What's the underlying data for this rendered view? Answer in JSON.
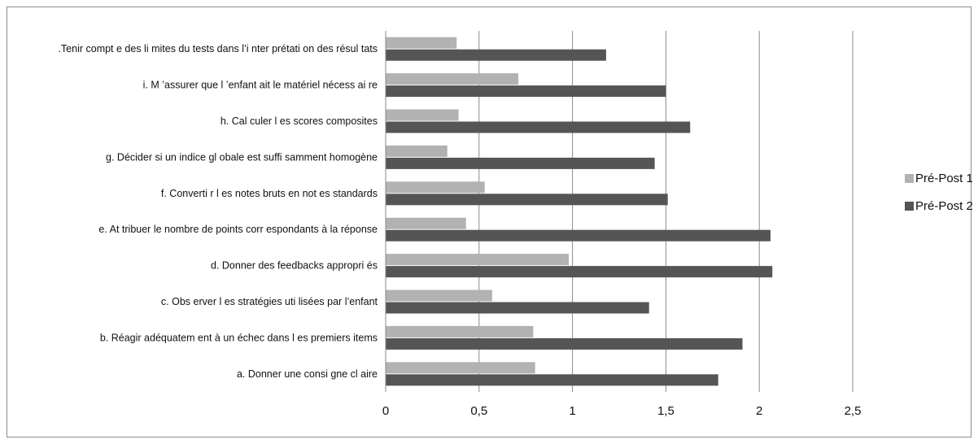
{
  "chart_data": {
    "type": "bar",
    "orientation": "horizontal",
    "title": "",
    "xlabel": "",
    "ylabel": "",
    "xlim": [
      0,
      2.5
    ],
    "xticks": [
      "0",
      "0,5",
      "1",
      "1,5",
      "2",
      "2,5"
    ],
    "xtick_values": [
      0,
      0.5,
      1,
      1.5,
      2,
      2.5
    ],
    "grid": "vertical",
    "legend_position": "right",
    "categories": [
      ".Tenir compt e des li mites du tests dans l’i nter prétati on des résul tats",
      "i. M ’assurer que l ’enfant ait le matériel nécess ai re",
      "h. Cal culer l es scores composites",
      "g. Décider si un indice gl obale est suffi samment homogène",
      "f. Converti r l es notes bruts en not es standards",
      "e. At tribuer le nombre de points corr espondants à la réponse",
      "d. Donner des feedbacks appropri és",
      "c. Obs erver l es stratégies uti lisées par l’enfant",
      "b. Réagir adéquatem ent à un échec dans l es premiers items",
      "a. Donner une consi gne cl aire"
    ],
    "series": [
      {
        "name": "Pré-Post 1",
        "color": "#b2b2b2",
        "values": [
          0.38,
          0.71,
          0.39,
          0.33,
          0.53,
          0.43,
          0.98,
          0.57,
          0.79,
          0.8
        ]
      },
      {
        "name": "Pré-Post 2",
        "color": "#555555",
        "values": [
          1.18,
          1.5,
          1.63,
          1.44,
          1.51,
          2.06,
          2.07,
          1.41,
          1.91,
          1.78
        ]
      }
    ]
  }
}
